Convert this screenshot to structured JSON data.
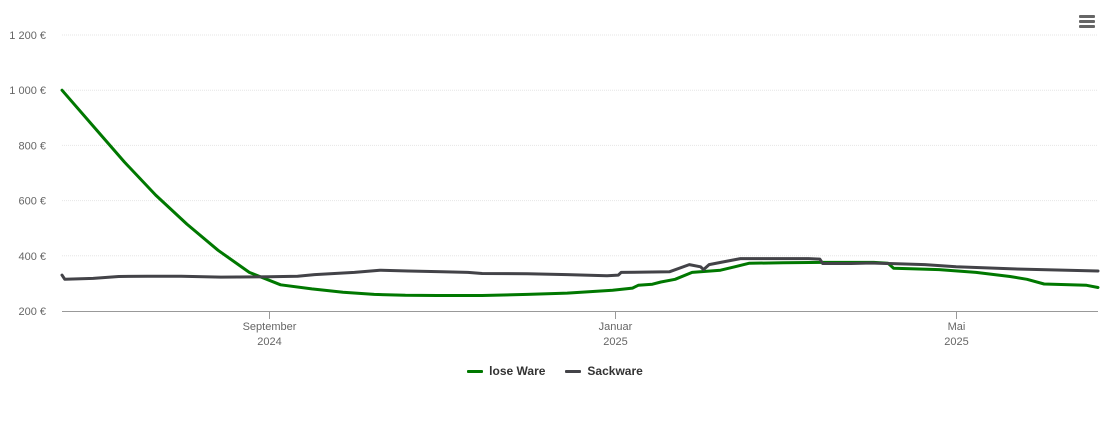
{
  "menu": {
    "icon": "hamburger-menu-icon"
  },
  "chart_data": {
    "type": "line",
    "title": "",
    "xlabel": "",
    "ylabel": "",
    "ylim": [
      200,
      1200
    ],
    "yticks": [
      {
        "value": 200,
        "label": "200 €"
      },
      {
        "value": 400,
        "label": "400 €"
      },
      {
        "value": 600,
        "label": "600 €"
      },
      {
        "value": 800,
        "label": "800 €"
      },
      {
        "value": 1000,
        "label": "1 000 €"
      },
      {
        "value": 1200,
        "label": "1 200 €"
      }
    ],
    "xlim": [
      "2024-06-20",
      "2025-06-20"
    ],
    "xticks": [
      {
        "value": "2024-09-01",
        "month": "September",
        "year": "2024"
      },
      {
        "value": "2025-01-01",
        "month": "Januar",
        "year": "2025"
      },
      {
        "value": "2025-05-01",
        "month": "Mai",
        "year": "2025"
      }
    ],
    "grid": true,
    "legend_position": "bottom-center",
    "series": [
      {
        "name": "lose Ware",
        "color": "#007800",
        "points": [
          [
            "2024-06-20",
            1000
          ],
          [
            "2024-07-01",
            870
          ],
          [
            "2024-07-12",
            740
          ],
          [
            "2024-07-23",
            620
          ],
          [
            "2024-08-03",
            515
          ],
          [
            "2024-08-14",
            420
          ],
          [
            "2024-08-25",
            340
          ],
          [
            "2024-09-05",
            295
          ],
          [
            "2024-09-16",
            280
          ],
          [
            "2024-09-27",
            268
          ],
          [
            "2024-10-08",
            260
          ],
          [
            "2024-10-19",
            257
          ],
          [
            "2024-10-30",
            256
          ],
          [
            "2024-11-15",
            256
          ],
          [
            "2024-12-01",
            260
          ],
          [
            "2024-12-15",
            265
          ],
          [
            "2024-12-31",
            275
          ],
          [
            "2025-01-07",
            283
          ],
          [
            "2025-01-09",
            293
          ],
          [
            "2025-01-14",
            297
          ],
          [
            "2025-01-17",
            305
          ],
          [
            "2025-01-22",
            315
          ],
          [
            "2025-01-28",
            340
          ],
          [
            "2025-02-07",
            348
          ],
          [
            "2025-02-12",
            360
          ],
          [
            "2025-02-17",
            373
          ],
          [
            "2025-03-01",
            375
          ],
          [
            "2025-03-15",
            376
          ],
          [
            "2025-04-02",
            376
          ],
          [
            "2025-04-07",
            373
          ],
          [
            "2025-04-09",
            355
          ],
          [
            "2025-04-15",
            353
          ],
          [
            "2025-04-25",
            350
          ],
          [
            "2025-05-08",
            340
          ],
          [
            "2025-05-20",
            325
          ],
          [
            "2025-05-26",
            315
          ],
          [
            "2025-06-01",
            298
          ],
          [
            "2025-06-10",
            295
          ],
          [
            "2025-06-16",
            293
          ],
          [
            "2025-06-20",
            285
          ]
        ]
      },
      {
        "name": "Sackware",
        "color": "#434348",
        "points": [
          [
            "2024-06-20",
            330
          ],
          [
            "2024-06-21",
            315
          ],
          [
            "2024-07-01",
            318
          ],
          [
            "2024-07-10",
            325
          ],
          [
            "2024-07-20",
            326
          ],
          [
            "2024-08-01",
            326
          ],
          [
            "2024-08-15",
            323
          ],
          [
            "2024-09-01",
            324
          ],
          [
            "2024-09-11",
            326
          ],
          [
            "2024-09-17",
            332
          ],
          [
            "2024-10-01",
            340
          ],
          [
            "2024-10-10",
            348
          ],
          [
            "2024-10-20",
            345
          ],
          [
            "2024-11-01",
            342
          ],
          [
            "2024-11-10",
            340
          ],
          [
            "2024-11-15",
            336
          ],
          [
            "2024-12-01",
            335
          ],
          [
            "2024-12-15",
            332
          ],
          [
            "2024-12-29",
            328
          ],
          [
            "2025-01-02",
            330
          ],
          [
            "2025-01-03",
            340
          ],
          [
            "2025-01-20",
            342
          ],
          [
            "2025-01-27",
            368
          ],
          [
            "2025-01-31",
            360
          ],
          [
            "2025-02-01",
            350
          ],
          [
            "2025-02-03",
            368
          ],
          [
            "2025-02-08",
            378
          ],
          [
            "2025-02-14",
            390
          ],
          [
            "2025-03-01",
            390
          ],
          [
            "2025-03-10",
            390
          ],
          [
            "2025-03-14",
            388
          ],
          [
            "2025-03-15",
            372
          ],
          [
            "2025-03-25",
            372
          ],
          [
            "2025-04-01",
            374
          ],
          [
            "2025-04-20",
            368
          ],
          [
            "2025-05-01",
            360
          ],
          [
            "2025-05-20",
            353
          ],
          [
            "2025-06-20",
            345
          ]
        ]
      }
    ]
  }
}
